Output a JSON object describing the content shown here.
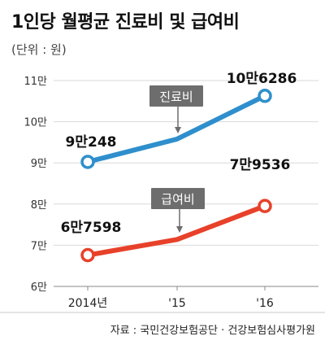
{
  "title": "1인당 월평균 진료비 및 급여비",
  "unit": "(단위 : 원)",
  "source": "자료 : 국민건강보험공단 · 건강보험심사평가원",
  "colors": {
    "series_1": "#2f8fcc",
    "series_2": "#e8412a",
    "callout": "#6d6d6d",
    "grid": "#d9d9d9",
    "background": "#ffffff"
  },
  "chart_data": {
    "type": "line",
    "title": "1인당 월평균 진료비 및 급여비",
    "ylabel": "(단위 : 원)",
    "xlabel": "",
    "x": [
      "2014년",
      "'15",
      "'16"
    ],
    "yticks": [
      60000,
      70000,
      80000,
      90000,
      100000,
      110000
    ],
    "ytick_labels": [
      "6만",
      "7만",
      "8만",
      "9만",
      "10만",
      "11만"
    ],
    "ylim": [
      60000,
      110000
    ],
    "grid": true,
    "legend": "none",
    "series": [
      {
        "name": "진료비",
        "values": [
          90248,
          95800,
          106286
        ],
        "point_labels": [
          "9만248",
          "",
          "10만6286"
        ],
        "markers": [
          true,
          false,
          true
        ]
      },
      {
        "name": "급여비",
        "values": [
          67598,
          71400,
          79536
        ],
        "point_labels": [
          "6만7598",
          "",
          "7만9536"
        ],
        "markers": [
          true,
          false,
          true
        ]
      }
    ]
  }
}
